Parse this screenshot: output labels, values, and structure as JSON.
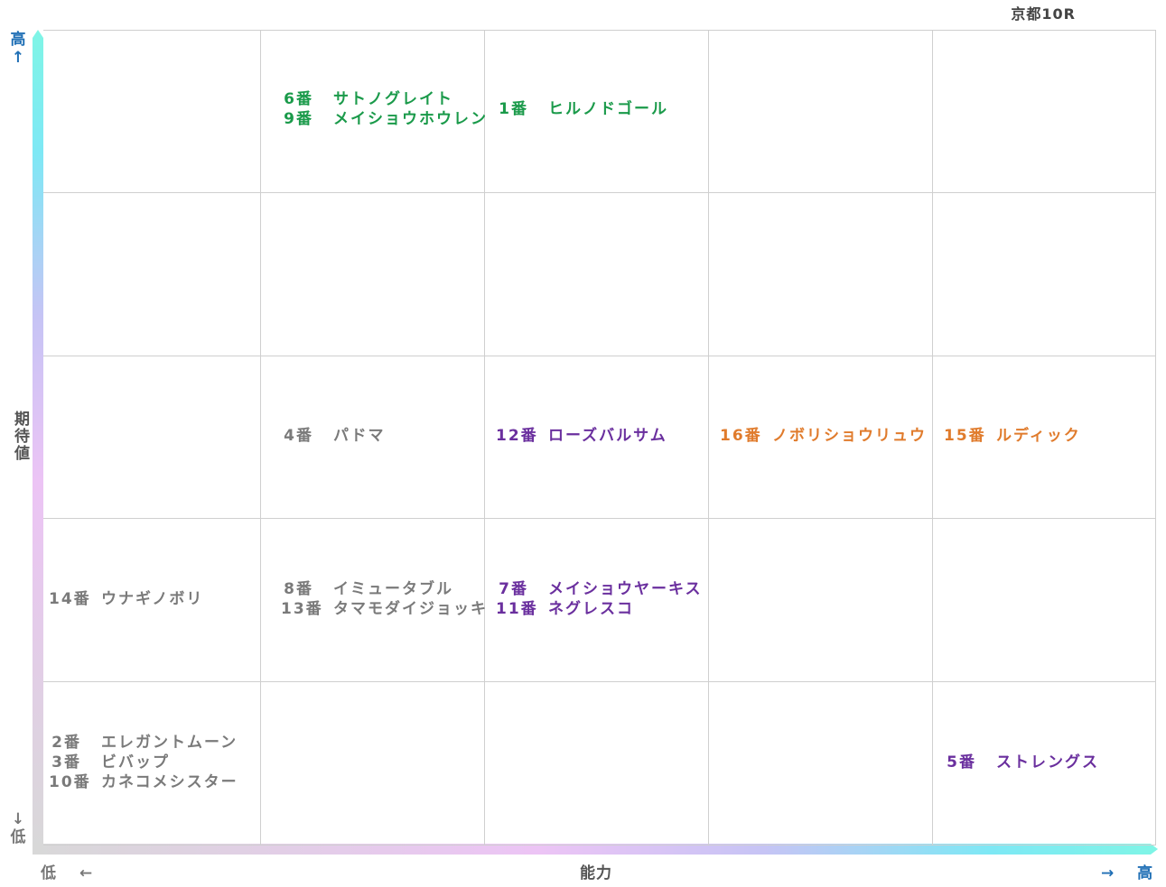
{
  "race_title": "京都10R",
  "axes": {
    "x_title": "能力",
    "x_low": "低",
    "x_high": "高",
    "x_low_arrow": "←",
    "x_high_arrow": "→",
    "y_title": "期待値",
    "y_low": "低",
    "y_high": "高",
    "y_low_arrow": "↓",
    "y_high_arrow": "↑"
  },
  "colors": {
    "green": "#1a9a4a",
    "purple": "#6a2f9e",
    "orange": "#e07b2c",
    "gray": "#7a7a7a",
    "blue_label": "#1f6fb5",
    "axis_gradient": [
      "#7ff5e6",
      "#7ee8f5",
      "#c6c4f5",
      "#ecc4f5",
      "#d8d8d8"
    ]
  },
  "chart_data": {
    "type": "table",
    "columns": 5,
    "rows": 5,
    "cells": [
      {
        "col": 1,
        "row": 4,
        "color": "green",
        "entries": [
          {
            "num": "6番",
            "name": "サトノグレイト"
          },
          {
            "num": "9番",
            "name": "メイショウホウレン"
          }
        ]
      },
      {
        "col": 2,
        "row": 4,
        "color": "green",
        "entries": [
          {
            "num": "1番",
            "name": "ヒルノドゴール"
          }
        ]
      },
      {
        "col": 1,
        "row": 2,
        "color": "gray",
        "entries": [
          {
            "num": "4番",
            "name": "パドマ"
          }
        ]
      },
      {
        "col": 2,
        "row": 2,
        "color": "purple",
        "entries": [
          {
            "num": "12番",
            "name": "ローズバルサム"
          }
        ]
      },
      {
        "col": 3,
        "row": 2,
        "color": "orange",
        "entries": [
          {
            "num": "16番",
            "name": "ノボリショウリュウ"
          }
        ]
      },
      {
        "col": 4,
        "row": 2,
        "color": "orange",
        "entries": [
          {
            "num": "15番",
            "name": "ルディック"
          }
        ]
      },
      {
        "col": 0,
        "row": 1,
        "color": "gray",
        "entries": [
          {
            "num": "14番",
            "name": "ウナギノボリ"
          }
        ]
      },
      {
        "col": 1,
        "row": 1,
        "color": "gray",
        "entries": [
          {
            "num": "8番",
            "name": "イミュータブル"
          },
          {
            "num": "13番",
            "name": "タマモダイジョッキ"
          }
        ]
      },
      {
        "col": 2,
        "row": 1,
        "color": "purple",
        "entries": [
          {
            "num": "7番",
            "name": "メイショウヤーキス"
          },
          {
            "num": "11番",
            "name": "ネグレスコ"
          }
        ]
      },
      {
        "col": 0,
        "row": 0,
        "color": "gray",
        "entries": [
          {
            "num": "2番",
            "name": "エレガントムーン"
          },
          {
            "num": "3番",
            "name": "ビバップ"
          },
          {
            "num": "10番",
            "name": "カネコメシスター"
          }
        ]
      },
      {
        "col": 4,
        "row": 0,
        "color": "purple",
        "entries": [
          {
            "num": "5番",
            "name": "ストレングス"
          }
        ]
      }
    ]
  }
}
